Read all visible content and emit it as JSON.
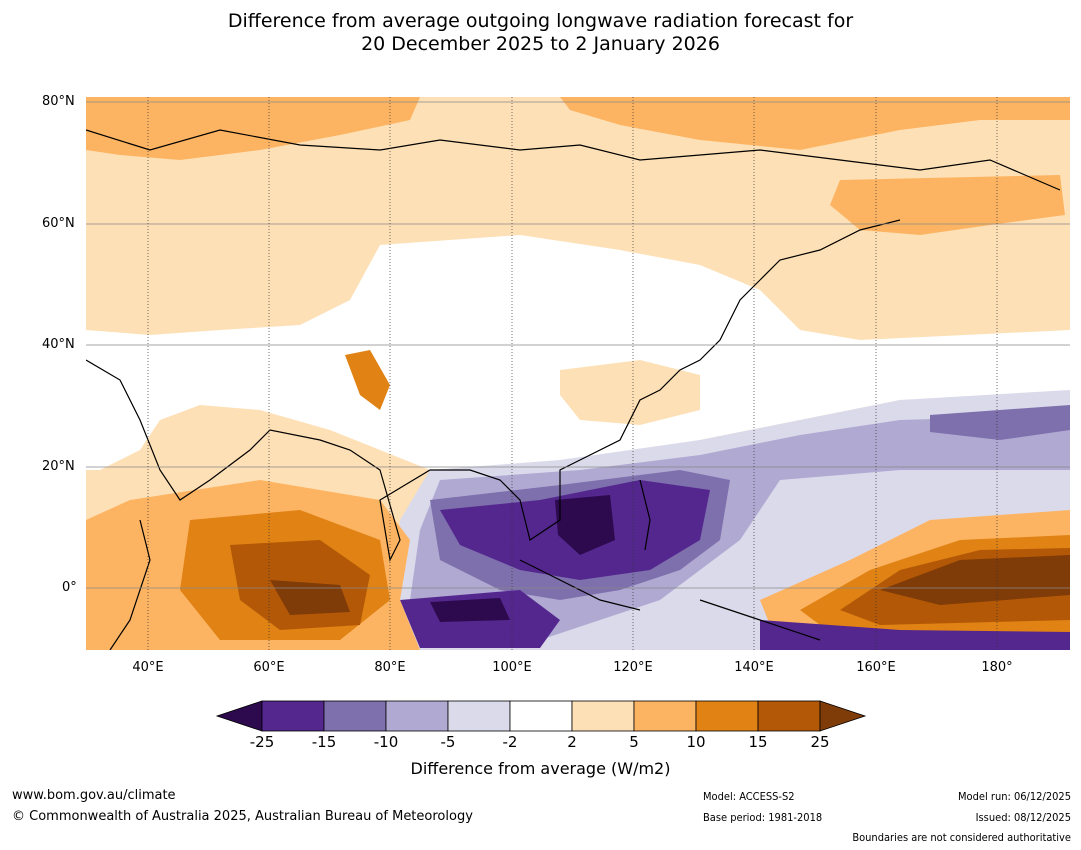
{
  "title": {
    "line1": "Difference from average outgoing longwave radiation forecast for",
    "line2": "20 December 2025 to 2 January 2026"
  },
  "map": {
    "lat_labels": [
      "80°N",
      "60°N",
      "40°N",
      "20°N",
      "0°"
    ],
    "lon_labels": [
      "40°E",
      "60°E",
      "80°E",
      "100°E",
      "120°E",
      "140°E",
      "160°E",
      "180°"
    ],
    "lat_range": [
      -10,
      80
    ],
    "lon_range": [
      30,
      192
    ]
  },
  "colorbar": {
    "ticks": [
      "-25",
      "-15",
      "-10",
      "-5",
      "-2",
      "2",
      "5",
      "10",
      "15",
      "25"
    ],
    "colors": [
      "#2d0a4e",
      "#54278f",
      "#7e6fad",
      "#b0a9d2",
      "#dadaeb",
      "#ffffff",
      "#fee0b6",
      "#fdb462",
      "#e08214",
      "#b35806",
      "#7f3b08"
    ],
    "label": "Difference from average (W/m2)"
  },
  "footer": {
    "website": "www.bom.gov.au/climate",
    "copyright": "© Commonwealth of Australia 2025, Australian Bureau of Meteorology",
    "model": "Model: ACCESS-S2",
    "base_period": "Base period: 1981-2018",
    "model_run": "Model run: 06/12/2025",
    "issued": "Issued: 08/12/2025",
    "boundaries": "Boundaries are not considered authoritative"
  }
}
